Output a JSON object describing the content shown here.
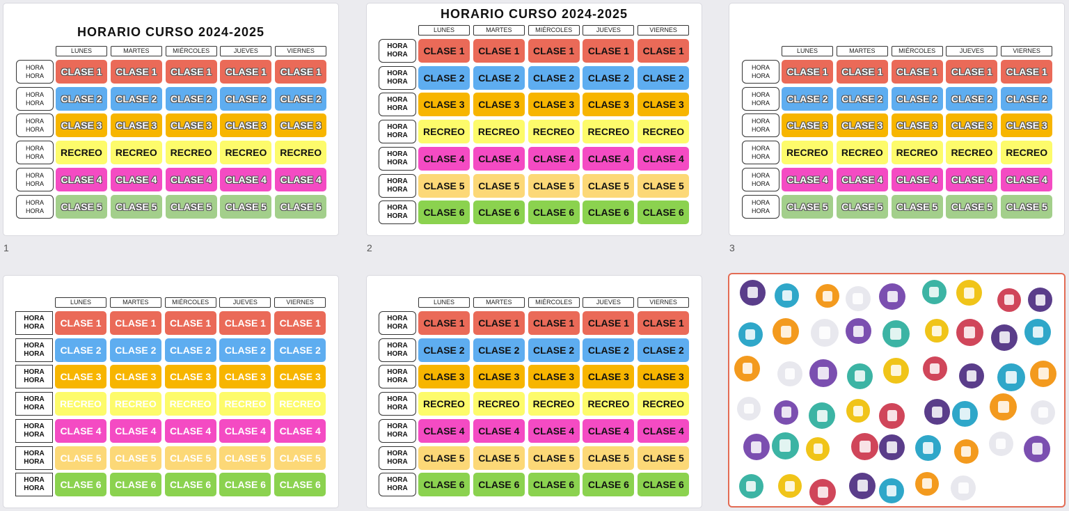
{
  "slides": [
    {
      "number": "1",
      "title": "HORARIO CURSO 2024-2025",
      "days": [
        "LUNES",
        "MARTES",
        "MIÉRCOLES",
        "JUEVES",
        "VIERNES"
      ],
      "rows": [
        {
          "hour": [
            "HORA",
            "HORA"
          ],
          "color": "#ea6a58",
          "cells": [
            "CLASE 1",
            "CLASE 1",
            "CLASE 1",
            "CLASE 1",
            "CLASE 1"
          ]
        },
        {
          "hour": [
            "HORA",
            "HORA"
          ],
          "color": "#5eadf0",
          "cells": [
            "CLASE 2",
            "CLASE 2",
            "CLASE 2",
            "CLASE 2",
            "CLASE 2"
          ]
        },
        {
          "hour": [
            "HORA",
            "HORA"
          ],
          "color": "#f7b500",
          "cells": [
            "CLASE 3",
            "CLASE 3",
            "CLASE 3",
            "CLASE 3",
            "CLASE 3"
          ]
        },
        {
          "hour": [
            "HORA",
            "HORA"
          ],
          "color": "#fdfb6b",
          "cells": [
            "RECREO",
            "RECREO",
            "RECREO",
            "RECREO",
            "RECREO"
          ]
        },
        {
          "hour": [
            "HORA",
            "HORA"
          ],
          "color": "#f44bc3",
          "cells": [
            "CLASE 4",
            "CLASE 4",
            "CLASE 4",
            "CLASE 4",
            "CLASE 4"
          ]
        },
        {
          "hour": [
            "HORA",
            "HORA"
          ],
          "color": "#a3cf8b",
          "cells": [
            "CLASE 5",
            "CLASE 5",
            "CLASE 5",
            "CLASE 5",
            "CLASE 5"
          ]
        }
      ]
    },
    {
      "number": "2",
      "title": "HORARIO CURSO 2024-2025",
      "days": [
        "LUNES",
        "MARTES",
        "MIÉRCOLES",
        "JUEVES",
        "VIERNES"
      ],
      "rows": [
        {
          "hour": [
            "HORA",
            "HORA"
          ],
          "color": "#ea6a58",
          "cells": [
            "CLASE 1",
            "CLASE 1",
            "CLASE 1",
            "CLASE 1",
            "CLASE 1"
          ]
        },
        {
          "hour": [
            "HORA",
            "HORA"
          ],
          "color": "#5eadf0",
          "cells": [
            "CLASE 2",
            "CLASE 2",
            "CLASE 2",
            "CLASE 2",
            "CLASE 2"
          ]
        },
        {
          "hour": [
            "HORA",
            "HORA"
          ],
          "color": "#f7b500",
          "cells": [
            "CLASE 3",
            "CLASE 3",
            "CLASE 3",
            "CLASE 3",
            "CLASE 3"
          ]
        },
        {
          "hour": [
            "HORA",
            "HORA"
          ],
          "color": "#fdfb6b",
          "cells": [
            "RECREO",
            "RECREO",
            "RECREO",
            "RECREO",
            "RECREO"
          ]
        },
        {
          "hour": [
            "HORA",
            "HORA"
          ],
          "color": "#f44bc3",
          "cells": [
            "CLASE 4",
            "CLASE 4",
            "CLASE 4",
            "CLASE 4",
            "CLASE 4"
          ]
        },
        {
          "hour": [
            "HORA",
            "HORA"
          ],
          "color": "#fcd877",
          "cells": [
            "CLASE 5",
            "CLASE 5",
            "CLASE 5",
            "CLASE 5",
            "CLASE 5"
          ]
        },
        {
          "hour": [
            "HORA",
            "HORA"
          ],
          "color": "#8bd24f",
          "cells": [
            "CLASE 6",
            "CLASE 6",
            "CLASE 6",
            "CLASE 6",
            "CLASE 6"
          ]
        }
      ]
    },
    {
      "number": "3",
      "days": [
        "LUNES",
        "MARTES",
        "MIÉRCOLES",
        "JUEVES",
        "VIERNES"
      ],
      "rows": [
        {
          "hour": [
            "HORA",
            "HORA"
          ],
          "color": "#ea6a58",
          "cells": [
            "CLASE 1",
            "CLASE 1",
            "CLASE 1",
            "CLASE 1",
            "CLASE 1"
          ]
        },
        {
          "hour": [
            "HORA",
            "HORA"
          ],
          "color": "#5eadf0",
          "cells": [
            "CLASE 2",
            "CLASE 2",
            "CLASE 2",
            "CLASE 2",
            "CLASE 2"
          ]
        },
        {
          "hour": [
            "HORA",
            "HORA"
          ],
          "color": "#f7b500",
          "cells": [
            "CLASE 3",
            "CLASE 3",
            "CLASE 3",
            "CLASE 3",
            "CLASE 3"
          ]
        },
        {
          "hour": [
            "HORA",
            "HORA"
          ],
          "color": "#fdfb6b",
          "cells": [
            "RECREO",
            "RECREO",
            "RECREO",
            "RECREO",
            "RECREO"
          ]
        },
        {
          "hour": [
            "HORA",
            "HORA"
          ],
          "color": "#f44bc3",
          "cells": [
            "CLASE 4",
            "CLASE 4",
            "CLASE 4",
            "CLASE 4",
            "CLASE 4"
          ]
        },
        {
          "hour": [
            "HORA",
            "HORA"
          ],
          "color": "#a3cf8b",
          "cells": [
            "CLASE 5",
            "CLASE 5",
            "CLASE 5",
            "CLASE 5",
            "CLASE 5"
          ]
        }
      ]
    },
    {
      "days": [
        "LUNES",
        "MARTES",
        "MIÉRCOLES",
        "JUEVES",
        "VIERNES"
      ],
      "rows": [
        {
          "hour": [
            "HORA",
            "HORA"
          ],
          "color": "#ea6a58",
          "cells": [
            "CLASE 1",
            "CLASE 1",
            "CLASE 1",
            "CLASE 1",
            "CLASE 1"
          ]
        },
        {
          "hour": [
            "HORA",
            "HORA"
          ],
          "color": "#5eadf0",
          "cells": [
            "CLASE 2",
            "CLASE 2",
            "CLASE 2",
            "CLASE 2",
            "CLASE 2"
          ]
        },
        {
          "hour": [
            "HORA",
            "HORA"
          ],
          "color": "#f7b500",
          "cells": [
            "CLASE 3",
            "CLASE 3",
            "CLASE 3",
            "CLASE 3",
            "CLASE 3"
          ]
        },
        {
          "hour": [
            "HORA",
            "HORA"
          ],
          "color": "#fdfb6b",
          "cells": [
            "RECREO",
            "RECREO",
            "RECREO",
            "RECREO",
            "RECREO"
          ]
        },
        {
          "hour": [
            "HORA",
            "HORA"
          ],
          "color": "#f44bc3",
          "cells": [
            "CLASE 4",
            "CLASE 4",
            "CLASE 4",
            "CLASE 4",
            "CLASE 4"
          ]
        },
        {
          "hour": [
            "HORA",
            "HORA"
          ],
          "color": "#fcd877",
          "cells": [
            "CLASE 5",
            "CLASE 5",
            "CLASE 5",
            "CLASE 5",
            "CLASE 5"
          ]
        },
        {
          "hour": [
            "HORA",
            "HORA"
          ],
          "color": "#8bd24f",
          "cells": [
            "CLASE 6",
            "CLASE 6",
            "CLASE 6",
            "CLASE 6",
            "CLASE 6"
          ]
        }
      ]
    },
    {
      "days": [
        "LUNES",
        "MARTES",
        "MIÉRCOLES",
        "JUEVES",
        "VIERNES"
      ],
      "rows": [
        {
          "hour": [
            "HORA",
            "HORA"
          ],
          "color": "#ea6a58",
          "cells": [
            "CLASE 1",
            "CLASE 1",
            "CLASE 1",
            "CLASE 1",
            "CLASE 1"
          ]
        },
        {
          "hour": [
            "HORA",
            "HORA"
          ],
          "color": "#5eadf0",
          "cells": [
            "CLASE 2",
            "CLASE 2",
            "CLASE 2",
            "CLASE 2",
            "CLASE 2"
          ]
        },
        {
          "hour": [
            "HORA",
            "HORA"
          ],
          "color": "#f7b500",
          "cells": [
            "CLASE 3",
            "CLASE 3",
            "CLASE 3",
            "CLASE 3",
            "CLASE 3"
          ]
        },
        {
          "hour": [
            "HORA",
            "HORA"
          ],
          "color": "#fdfb6b",
          "cells": [
            "RECREO",
            "RECREO",
            "RECREO",
            "RECREO",
            "RECREO"
          ]
        },
        {
          "hour": [
            "HORA",
            "HORA"
          ],
          "color": "#f44bc3",
          "cells": [
            "CLASE 4",
            "CLASE 4",
            "CLASE 4",
            "CLASE 4",
            "CLASE 4"
          ]
        },
        {
          "hour": [
            "HORA",
            "HORA"
          ],
          "color": "#fcd877",
          "cells": [
            "CLASE 5",
            "CLASE 5",
            "CLASE 5",
            "CLASE 5",
            "CLASE 5"
          ]
        },
        {
          "hour": [
            "HORA",
            "HORA"
          ],
          "color": "#8bd24f",
          "cells": [
            "CLASE 6",
            "CLASE 6",
            "CLASE 6",
            "CLASE 6",
            "CLASE 6"
          ]
        }
      ]
    }
  ]
}
